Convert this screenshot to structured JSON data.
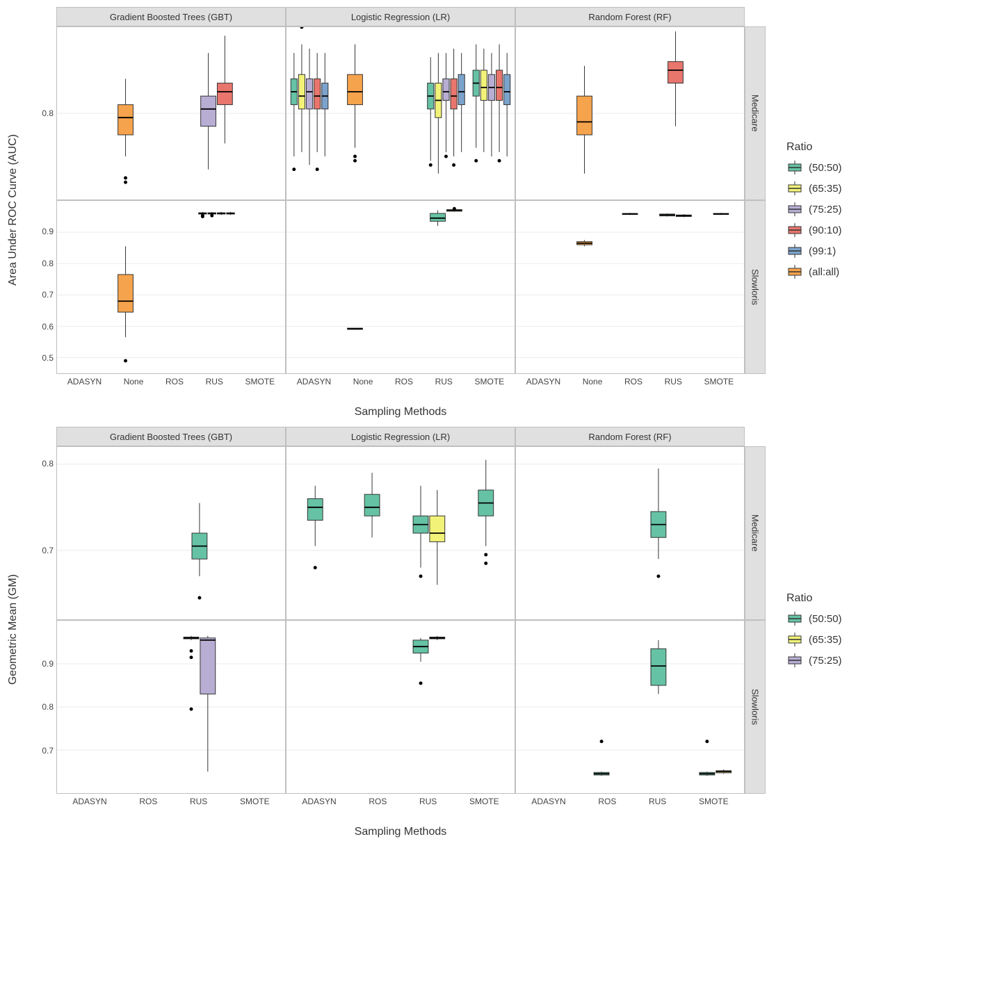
{
  "colors": {
    "ratio_50_50": "#66c2a5",
    "ratio_65_35": "#f2f279",
    "ratio_75_25": "#b8aed4",
    "ratio_90_10": "#e8766d",
    "ratio_99_1": "#7ba3cc",
    "ratio_all": "#f5a34c",
    "grid": "#ebebeb",
    "strip_bg": "#e0e0e0",
    "border": "#bfbfbf"
  },
  "legends": {
    "top": {
      "title": "Ratio",
      "items": [
        {
          "label": "(50:50)",
          "color_key": "ratio_50_50"
        },
        {
          "label": "(65:35)",
          "color_key": "ratio_65_35"
        },
        {
          "label": "(75:25)",
          "color_key": "ratio_75_25"
        },
        {
          "label": "(90:10)",
          "color_key": "ratio_90_10"
        },
        {
          "label": "(99:1)",
          "color_key": "ratio_99_1"
        },
        {
          "label": "(all:all)",
          "color_key": "ratio_all"
        }
      ]
    },
    "bottom": {
      "title": "Ratio",
      "items": [
        {
          "label": "(50:50)",
          "color_key": "ratio_50_50"
        },
        {
          "label": "(65:35)",
          "color_key": "ratio_65_35"
        },
        {
          "label": "(75:25)",
          "color_key": "ratio_75_25"
        }
      ]
    }
  },
  "charts": {
    "top": {
      "y_label": "Area Under ROC Curve (AUC)",
      "x_label": "Sampling Methods",
      "col_facets": [
        "Gradient Boosted Trees (GBT)",
        "Logistic Regression (LR)",
        "Random Forest (RF)"
      ],
      "row_facets": [
        "Medicare",
        "Slowloris"
      ],
      "x_categories_row1": [
        "ADASYN",
        "None",
        "ROS",
        "RUS",
        "SMOTE"
      ],
      "x_categories_row2": [
        "ADASYN",
        "None",
        "ROS",
        "RUS",
        "SMOTE"
      ],
      "y_ticks_row1": {
        "min": 0.7,
        "max": 0.9,
        "labels": [
          "0.8"
        ],
        "positions": [
          0.8
        ]
      },
      "y_ticks_row2": {
        "min": 0.45,
        "max": 1.0,
        "labels": [
          "0.5",
          "0.6",
          "0.7",
          "0.8",
          "0.9"
        ],
        "positions": [
          0.5,
          0.6,
          0.7,
          0.8,
          0.9
        ]
      },
      "panels": [
        {
          "row": 0,
          "col": 0,
          "boxes": [
            {
              "x": "None",
              "ratio": "ratio_all",
              "low": 0.75,
              "q1": 0.775,
              "med": 0.795,
              "q3": 0.81,
              "hi": 0.84,
              "out": [
                0.72,
                0.725
              ]
            },
            {
              "x": "RUS",
              "ratio": "ratio_75_25",
              "low": 0.735,
              "q1": 0.785,
              "med": 0.805,
              "q3": 0.82,
              "hi": 0.87,
              "out": []
            },
            {
              "x": "RUS",
              "ratio": "ratio_90_10",
              "low": 0.765,
              "q1": 0.81,
              "med": 0.825,
              "q3": 0.835,
              "hi": 0.89,
              "out": []
            }
          ]
        },
        {
          "row": 0,
          "col": 1,
          "boxes": [
            {
              "x": "ADASYN",
              "ratio": "ratio_50_50",
              "low": 0.75,
              "q1": 0.81,
              "med": 0.825,
              "q3": 0.84,
              "hi": 0.87,
              "out": [
                0.735
              ]
            },
            {
              "x": "ADASYN",
              "ratio": "ratio_65_35",
              "low": 0.755,
              "q1": 0.805,
              "med": 0.82,
              "q3": 0.845,
              "hi": 0.88,
              "out": [
                0.9
              ]
            },
            {
              "x": "ADASYN",
              "ratio": "ratio_75_25",
              "low": 0.74,
              "q1": 0.805,
              "med": 0.825,
              "q3": 0.84,
              "hi": 0.875,
              "out": []
            },
            {
              "x": "ADASYN",
              "ratio": "ratio_90_10",
              "low": 0.755,
              "q1": 0.805,
              "med": 0.82,
              "q3": 0.84,
              "hi": 0.87,
              "out": [
                0.735
              ]
            },
            {
              "x": "ADASYN",
              "ratio": "ratio_99_1",
              "low": 0.75,
              "q1": 0.805,
              "med": 0.82,
              "q3": 0.835,
              "hi": 0.87,
              "out": []
            },
            {
              "x": "None",
              "ratio": "ratio_all",
              "low": 0.76,
              "q1": 0.81,
              "med": 0.825,
              "q3": 0.845,
              "hi": 0.88,
              "out": [
                0.745,
                0.75
              ]
            },
            {
              "x": "RUS",
              "ratio": "ratio_50_50",
              "low": 0.745,
              "q1": 0.805,
              "med": 0.82,
              "q3": 0.835,
              "hi": 0.865,
              "out": [
                0.74
              ]
            },
            {
              "x": "RUS",
              "ratio": "ratio_65_35",
              "low": 0.73,
              "q1": 0.795,
              "med": 0.815,
              "q3": 0.835,
              "hi": 0.87,
              "out": []
            },
            {
              "x": "RUS",
              "ratio": "ratio_75_25",
              "low": 0.755,
              "q1": 0.815,
              "med": 0.825,
              "q3": 0.84,
              "hi": 0.87,
              "out": [
                0.75
              ]
            },
            {
              "x": "RUS",
              "ratio": "ratio_90_10",
              "low": 0.75,
              "q1": 0.805,
              "med": 0.82,
              "q3": 0.84,
              "hi": 0.875,
              "out": [
                0.74
              ]
            },
            {
              "x": "RUS",
              "ratio": "ratio_99_1",
              "low": 0.755,
              "q1": 0.81,
              "med": 0.825,
              "q3": 0.845,
              "hi": 0.87,
              "out": []
            },
            {
              "x": "SMOTE",
              "ratio": "ratio_50_50",
              "low": 0.76,
              "q1": 0.82,
              "med": 0.835,
              "q3": 0.85,
              "hi": 0.88,
              "out": [
                0.745
              ]
            },
            {
              "x": "SMOTE",
              "ratio": "ratio_65_35",
              "low": 0.755,
              "q1": 0.815,
              "med": 0.83,
              "q3": 0.85,
              "hi": 0.875,
              "out": []
            },
            {
              "x": "SMOTE",
              "ratio": "ratio_75_25",
              "low": 0.75,
              "q1": 0.815,
              "med": 0.83,
              "q3": 0.845,
              "hi": 0.87,
              "out": []
            },
            {
              "x": "SMOTE",
              "ratio": "ratio_90_10",
              "low": 0.755,
              "q1": 0.815,
              "med": 0.83,
              "q3": 0.85,
              "hi": 0.88,
              "out": [
                0.745
              ]
            },
            {
              "x": "SMOTE",
              "ratio": "ratio_99_1",
              "low": 0.75,
              "q1": 0.81,
              "med": 0.825,
              "q3": 0.845,
              "hi": 0.87,
              "out": []
            }
          ]
        },
        {
          "row": 0,
          "col": 2,
          "boxes": [
            {
              "x": "None",
              "ratio": "ratio_all",
              "low": 0.73,
              "q1": 0.775,
              "med": 0.79,
              "q3": 0.82,
              "hi": 0.855,
              "out": []
            },
            {
              "x": "RUS",
              "ratio": "ratio_90_10",
              "low": 0.785,
              "q1": 0.835,
              "med": 0.85,
              "q3": 0.86,
              "hi": 0.895,
              "out": []
            }
          ]
        },
        {
          "row": 1,
          "col": 0,
          "boxes": [
            {
              "x": "None",
              "ratio": "ratio_all",
              "low": 0.565,
              "q1": 0.645,
              "med": 0.68,
              "q3": 0.765,
              "hi": 0.855,
              "out": [
                0.49
              ]
            },
            {
              "x": "RUS",
              "ratio": "ratio_50_50",
              "low": 0.955,
              "q1": 0.958,
              "med": 0.96,
              "q3": 0.962,
              "hi": 0.965,
              "out": [
                0.95,
                0.953
              ]
            },
            {
              "x": "RUS",
              "ratio": "ratio_65_35",
              "low": 0.955,
              "q1": 0.958,
              "med": 0.96,
              "q3": 0.962,
              "hi": 0.965,
              "out": [
                0.953
              ]
            },
            {
              "x": "RUS",
              "ratio": "ratio_75_25",
              "low": 0.955,
              "q1": 0.958,
              "med": 0.96,
              "q3": 0.962,
              "hi": 0.965,
              "out": []
            },
            {
              "x": "RUS",
              "ratio": "ratio_90_10",
              "low": 0.955,
              "q1": 0.958,
              "med": 0.96,
              "q3": 0.962,
              "hi": 0.965,
              "out": []
            }
          ]
        },
        {
          "row": 1,
          "col": 1,
          "boxes": [
            {
              "x": "None",
              "ratio": "ratio_all",
              "low": 0.59,
              "q1": 0.59,
              "med": 0.592,
              "q3": 0.594,
              "hi": 0.595,
              "out": []
            },
            {
              "x": "RUS",
              "ratio": "ratio_50_50",
              "low": 0.92,
              "q1": 0.935,
              "med": 0.945,
              "q3": 0.96,
              "hi": 0.97,
              "out": []
            },
            {
              "x": "RUS",
              "ratio": "ratio_65_35",
              "low": 0.965,
              "q1": 0.967,
              "med": 0.97,
              "q3": 0.972,
              "hi": 0.975,
              "out": [
                0.975
              ]
            }
          ]
        },
        {
          "row": 1,
          "col": 2,
          "boxes": [
            {
              "x": "None",
              "ratio": "ratio_all",
              "low": 0.855,
              "q1": 0.86,
              "med": 0.865,
              "q3": 0.87,
              "hi": 0.875,
              "out": []
            },
            {
              "x": "ROS",
              "ratio": "ratio_50_50",
              "low": 0.955,
              "q1": 0.957,
              "med": 0.958,
              "q3": 0.96,
              "hi": 0.962,
              "out": []
            },
            {
              "x": "RUS",
              "ratio": "ratio_50_50",
              "low": 0.95,
              "q1": 0.952,
              "med": 0.955,
              "q3": 0.958,
              "hi": 0.96,
              "out": []
            },
            {
              "x": "RUS",
              "ratio": "ratio_65_35",
              "low": 0.948,
              "q1": 0.95,
              "med": 0.953,
              "q3": 0.955,
              "hi": 0.958,
              "out": []
            },
            {
              "x": "SMOTE",
              "ratio": "ratio_50_50",
              "low": 0.955,
              "q1": 0.957,
              "med": 0.958,
              "q3": 0.96,
              "hi": 0.962,
              "out": []
            }
          ]
        }
      ]
    },
    "bottom": {
      "y_label": "Geometric Mean (GM)",
      "x_label": "Sampling Methods",
      "col_facets": [
        "Gradient Boosted Trees (GBT)",
        "Logistic Regression (LR)",
        "Random Forest (RF)"
      ],
      "row_facets": [
        "Medicare",
        "Slowloris"
      ],
      "x_categories_row1": [
        "ADASYN",
        "ROS",
        "RUS",
        "SMOTE"
      ],
      "x_categories_row2": [
        "ADASYN",
        "ROS",
        "RUS",
        "SMOTE"
      ],
      "y_ticks_row1": {
        "min": 0.62,
        "max": 0.82,
        "labels": [
          "0.7",
          "0.8"
        ],
        "positions": [
          0.7,
          0.8
        ]
      },
      "y_ticks_row2": {
        "min": 0.6,
        "max": 1.0,
        "labels": [
          "0.7",
          "0.8",
          "0.9"
        ],
        "positions": [
          0.7,
          0.8,
          0.9
        ]
      },
      "panels": [
        {
          "row": 0,
          "col": 0,
          "boxes": [
            {
              "x": "RUS",
              "ratio": "ratio_50_50",
              "low": 0.67,
              "q1": 0.69,
              "med": 0.705,
              "q3": 0.72,
              "hi": 0.755,
              "out": [
                0.645
              ]
            }
          ]
        },
        {
          "row": 0,
          "col": 1,
          "boxes": [
            {
              "x": "ADASYN",
              "ratio": "ratio_50_50",
              "low": 0.705,
              "q1": 0.735,
              "med": 0.75,
              "q3": 0.76,
              "hi": 0.775,
              "out": [
                0.68
              ]
            },
            {
              "x": "ROS",
              "ratio": "ratio_50_50",
              "low": 0.715,
              "q1": 0.74,
              "med": 0.75,
              "q3": 0.765,
              "hi": 0.79,
              "out": []
            },
            {
              "x": "RUS",
              "ratio": "ratio_50_50",
              "low": 0.68,
              "q1": 0.72,
              "med": 0.73,
              "q3": 0.74,
              "hi": 0.775,
              "out": [
                0.67
              ]
            },
            {
              "x": "RUS",
              "ratio": "ratio_65_35",
              "low": 0.66,
              "q1": 0.71,
              "med": 0.72,
              "q3": 0.74,
              "hi": 0.77,
              "out": []
            },
            {
              "x": "SMOTE",
              "ratio": "ratio_50_50",
              "low": 0.705,
              "q1": 0.74,
              "med": 0.755,
              "q3": 0.77,
              "hi": 0.805,
              "out": [
                0.685,
                0.695
              ]
            }
          ]
        },
        {
          "row": 0,
          "col": 2,
          "boxes": [
            {
              "x": "RUS",
              "ratio": "ratio_50_50",
              "low": 0.69,
              "q1": 0.715,
              "med": 0.73,
              "q3": 0.745,
              "hi": 0.795,
              "out": [
                0.67
              ]
            }
          ]
        },
        {
          "row": 1,
          "col": 0,
          "boxes": [
            {
              "x": "RUS",
              "ratio": "ratio_50_50",
              "low": 0.955,
              "q1": 0.958,
              "med": 0.96,
              "q3": 0.962,
              "hi": 0.965,
              "out": [
                0.93,
                0.915,
                0.795
              ]
            },
            {
              "x": "RUS",
              "ratio": "ratio_75_25",
              "low": 0.65,
              "q1": 0.83,
              "med": 0.955,
              "q3": 0.96,
              "hi": 0.965,
              "out": []
            }
          ]
        },
        {
          "row": 1,
          "col": 1,
          "boxes": [
            {
              "x": "RUS",
              "ratio": "ratio_50_50",
              "low": 0.905,
              "q1": 0.925,
              "med": 0.94,
              "q3": 0.955,
              "hi": 0.96,
              "out": [
                0.855
              ]
            },
            {
              "x": "RUS",
              "ratio": "ratio_65_35",
              "low": 0.955,
              "q1": 0.958,
              "med": 0.96,
              "q3": 0.962,
              "hi": 0.965,
              "out": []
            }
          ]
        },
        {
          "row": 1,
          "col": 2,
          "boxes": [
            {
              "x": "ROS",
              "ratio": "ratio_50_50",
              "low": 0.64,
              "q1": 0.642,
              "med": 0.645,
              "q3": 0.648,
              "hi": 0.65,
              "out": [
                0.72
              ]
            },
            {
              "x": "RUS",
              "ratio": "ratio_50_50",
              "low": 0.83,
              "q1": 0.85,
              "med": 0.895,
              "q3": 0.935,
              "hi": 0.955,
              "out": []
            },
            {
              "x": "SMOTE",
              "ratio": "ratio_50_50",
              "low": 0.64,
              "q1": 0.642,
              "med": 0.645,
              "q3": 0.648,
              "hi": 0.65,
              "out": [
                0.72
              ]
            },
            {
              "x": "SMOTE",
              "ratio": "ratio_65_35",
              "low": 0.645,
              "q1": 0.647,
              "med": 0.65,
              "q3": 0.652,
              "hi": 0.655,
              "out": []
            }
          ]
        }
      ]
    }
  }
}
